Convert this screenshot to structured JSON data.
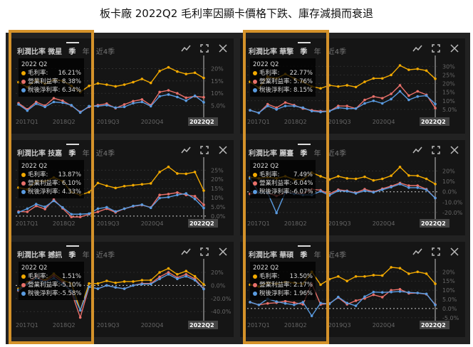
{
  "title": "板卡廠 2022Q2 毛利率因顯卡價格下跌、庫存減損而衰退",
  "panel_header": "利潤比率",
  "tabs": [
    "季",
    "年",
    "近4季"
  ],
  "tooltip_period": "2022 Q2",
  "series_labels": [
    "毛利率:",
    "營業利益率:",
    "稅後淨利率:"
  ],
  "colors": {
    "gross": "#f2a900",
    "operating": "#e8706a",
    "net": "#5a9be0",
    "highlight": "#d4922a"
  },
  "icons": [
    "line-chart-icon",
    "fullscreen-icon",
    "close-icon"
  ],
  "chart_data": [
    {
      "type": "line",
      "company": "微星",
      "categories_shown": [
        "2017Q1",
        "2018Q2",
        "2019Q3",
        "2020Q4",
        "2022Q2"
      ],
      "ylim": [
        0,
        23
      ],
      "yticks": [
        5,
        10,
        15,
        20
      ],
      "ytick_labels": [
        "5.0%",
        "10%",
        "15%",
        "20%"
      ],
      "tooltip": [
        "16.21%",
        "8.38%",
        "6.34%"
      ],
      "series": [
        {
          "name": "毛利率",
          "values": [
            14.5,
            12.5,
            15.5,
            13.8,
            15.5,
            15,
            13,
            10.5,
            13,
            14,
            13.5,
            12.8,
            13.5,
            14.5,
            15.8,
            14.2,
            19,
            20.5,
            18.8,
            17.8,
            18.3,
            16.21
          ]
        },
        {
          "name": "營業利益率",
          "values": [
            6,
            3.5,
            6.5,
            5,
            8,
            7,
            5,
            2.5,
            4.5,
            5.2,
            5.8,
            4,
            5.5,
            6.8,
            7.5,
            5.2,
            10.5,
            11.2,
            10,
            8.2,
            8.8,
            8.38
          ]
        },
        {
          "name": "稅後淨利率",
          "values": [
            5.5,
            3,
            5.8,
            4.5,
            6.5,
            6.2,
            5.2,
            2.2,
            4.8,
            4.8,
            5.2,
            4.2,
            4.5,
            6,
            6.5,
            4.8,
            8.8,
            9.5,
            8.5,
            7,
            9,
            6.34
          ]
        }
      ]
    },
    {
      "type": "line",
      "company": "華擎",
      "categories_shown": [
        "2017Q1",
        "2018Q2",
        "2019Q3",
        "2020Q4",
        "2022Q2"
      ],
      "ylim": [
        0,
        33
      ],
      "yticks": [
        5,
        10,
        15,
        20,
        25,
        30
      ],
      "ytick_labels": [
        "5.0%",
        "10%",
        "15%",
        "20%",
        "25%",
        "30%"
      ],
      "tooltip": [
        "22.77%",
        "5.76%",
        "8.15%"
      ],
      "series": [
        {
          "name": "毛利率",
          "values": [
            21,
            17.5,
            24,
            23,
            25.5,
            23,
            21,
            18.3,
            17.2,
            19,
            18.3,
            19,
            18,
            21,
            23,
            23,
            25,
            30.5,
            28,
            28.5,
            27.5,
            22.77
          ]
        },
        {
          "name": "營業利益率",
          "values": [
            4.5,
            3,
            8,
            6,
            9,
            7.5,
            5.5,
            4.5,
            4,
            4,
            7,
            7,
            5.5,
            10.5,
            12.5,
            11.5,
            14,
            19,
            13,
            15.5,
            13.5,
            5.76
          ]
        },
        {
          "name": "稅後淨利率",
          "values": [
            4.5,
            3,
            7,
            5,
            7,
            7,
            6,
            4,
            3.5,
            4,
            6,
            5.5,
            5.5,
            8.5,
            10,
            8.5,
            11,
            15.5,
            10.5,
            12.5,
            13,
            8.15
          ]
        }
      ]
    },
    {
      "type": "line",
      "company": "技嘉",
      "categories_shown": [
        "2017Q1",
        "2018Q2",
        "2019Q3",
        "2020Q4",
        "2022Q2"
      ],
      "ylim": [
        -2,
        29
      ],
      "yticks": [
        0,
        5,
        10,
        15,
        20,
        25
      ],
      "ytick_labels": [
        "0.0%",
        "5.0%",
        "10%",
        "15%",
        "20%",
        "25%"
      ],
      "tooltip": [
        "13.87%",
        "6.10%",
        "4.33%"
      ],
      "series": [
        {
          "name": "毛利率",
          "values": [
            15.5,
            14.5,
            19,
            19,
            21,
            19,
            13,
            11.5,
            13,
            18,
            16.5,
            15.3,
            16.3,
            16.8,
            17.3,
            17.8,
            24,
            26.8,
            23.2,
            23,
            24,
            13.87
          ]
        },
        {
          "name": "營業利益率",
          "values": [
            2.5,
            2.3,
            5.5,
            3.8,
            9,
            4.2,
            -0.5,
            -0.5,
            1,
            2.3,
            4,
            2,
            4,
            5.3,
            6,
            4.7,
            11.5,
            12,
            12.8,
            11.5,
            10.8,
            6.1
          ]
        },
        {
          "name": "稅後淨利率",
          "values": [
            2,
            4,
            6.5,
            5,
            8.3,
            4.7,
            1,
            1,
            1.3,
            4,
            4.8,
            2.5,
            4,
            5.5,
            6.2,
            4.5,
            9.8,
            10.3,
            11.5,
            12.3,
            9.3,
            4.33
          ]
        }
      ]
    },
    {
      "type": "line",
      "company": "麗臺",
      "categories_shown": [
        "2017Q1",
        "2018Q2",
        "2019Q3",
        "2020Q4",
        "2022Q2"
      ],
      "ylim": [
        -27,
        28
      ],
      "yticks": [
        -20,
        -10,
        0,
        10,
        20
      ],
      "ytick_labels": [
        "-20.0%",
        "-10.0%",
        "0.0%",
        "10%",
        "20%"
      ],
      "tooltip": [
        "7.49%",
        "-6.04%",
        "-6.07%"
      ],
      "series": [
        {
          "name": "毛利率",
          "values": [
            14,
            13,
            14,
            13,
            15,
            12,
            12,
            18.5,
            15,
            12,
            15,
            13,
            12.5,
            14.5,
            11,
            12.5,
            15.5,
            24,
            15.8,
            15.5,
            12.5,
            7.49
          ]
        },
        {
          "name": "營業利益率",
          "values": [
            -2,
            -1,
            -1,
            -4,
            -1,
            -1.5,
            -2,
            2.5,
            1.5,
            -2,
            2,
            1,
            -1,
            2.5,
            0,
            3,
            5.5,
            8.5,
            6,
            6,
            2.5,
            -6.04
          ]
        },
        {
          "name": "稅後淨利率",
          "values": [
            13,
            -1,
            -1,
            -20.5,
            -0.5,
            -2,
            -3,
            -3,
            0.5,
            -3.5,
            1,
            0.5,
            -1.5,
            1,
            -0.5,
            2,
            4.5,
            7.5,
            4,
            4,
            2,
            -6.07
          ]
        }
      ]
    },
    {
      "type": "line",
      "company": "撼訊",
      "categories_shown": [
        "2017Q1",
        "2018Q2",
        "2019Q3",
        "2020Q4",
        "2022Q2"
      ],
      "ylim": [
        -55,
        32
      ],
      "yticks": [
        -40,
        -20,
        0,
        20
      ],
      "ytick_labels": [
        "-40.0%",
        "-20.0%",
        "0.0%",
        "20%"
      ],
      "tooltip": [
        "1.51%",
        "-5.10%",
        "-5.58%"
      ],
      "series": [
        {
          "name": "毛利率",
          "values": [
            -5,
            5,
            12,
            8,
            18,
            8,
            3,
            -38,
            3,
            3,
            7,
            4,
            6,
            6,
            8,
            8,
            20,
            26,
            17,
            22,
            14,
            1.51
          ]
        },
        {
          "name": "營業利益率",
          "values": [
            -8,
            3,
            14,
            6,
            15,
            5,
            -10,
            -49,
            -2,
            -5,
            0,
            -3,
            -5,
            0,
            3,
            3,
            13,
            20,
            12,
            17,
            10,
            -5.1
          ]
        },
        {
          "name": "稅後淨利率",
          "values": [
            -7,
            2,
            11,
            5,
            11,
            2,
            -8,
            -38,
            -2,
            -5,
            0,
            -3,
            -5,
            0,
            2,
            2,
            10,
            17,
            10,
            14,
            8,
            -5.58
          ]
        }
      ]
    },
    {
      "type": "line",
      "company": "華碩",
      "categories_shown": [
        "2017Q1",
        "2018Q2",
        "2019Q3",
        "2020Q4",
        "2022Q2"
      ],
      "ylim": [
        -7,
        24
      ],
      "yticks": [
        -5,
        0,
        5,
        10,
        15,
        20
      ],
      "ytick_labels": [
        "-5.0%",
        "0.0%",
        "5.0%",
        "10%",
        "15%",
        "20%"
      ],
      "tooltip": [
        "13.50%",
        "2.17%",
        "1.96%"
      ],
      "series": [
        {
          "name": "毛利率",
          "values": [
            13,
            12,
            14,
            13.5,
            14.5,
            14,
            13.5,
            20,
            13,
            16,
            17.5,
            15,
            17.5,
            17.5,
            18.2,
            18,
            22.5,
            22,
            19,
            20,
            19,
            13.5
          ]
        },
        {
          "name": "營業利益率",
          "values": [
            3.5,
            2,
            2.8,
            3.2,
            4,
            3.2,
            2.3,
            13.5,
            2.2,
            2.8,
            6,
            2.3,
            4.3,
            5.5,
            7.5,
            6.2,
            10,
            10.5,
            8.3,
            8.5,
            7.8,
            2.17
          ]
        },
        {
          "name": "稅後淨利率",
          "values": [
            3.5,
            2,
            5.3,
            3.8,
            2.8,
            2,
            3.5,
            -4,
            3,
            2.5,
            6.3,
            3,
            1.5,
            6.5,
            9,
            8.8,
            9,
            9.3,
            8.8,
            8.5,
            8,
            1.96
          ]
        }
      ]
    }
  ]
}
